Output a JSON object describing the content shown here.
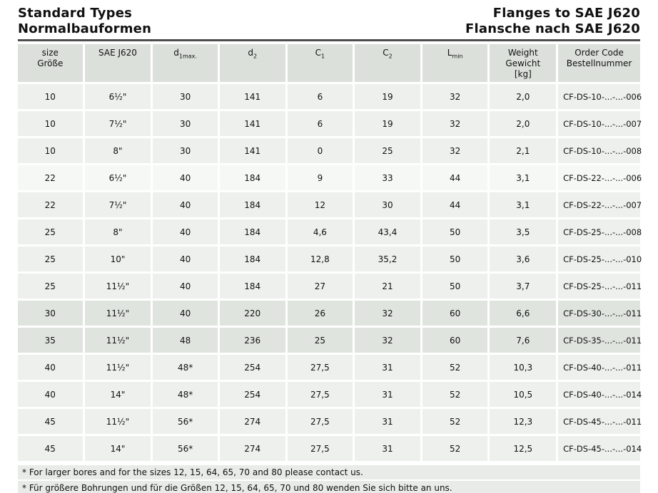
{
  "header": {
    "left": {
      "line1": "Standard Types",
      "line2": "Normalbauformen"
    },
    "right": {
      "line1": "Flanges to SAE J620",
      "line2": "Flansche nach SAE J620"
    }
  },
  "table": {
    "headers": {
      "size": {
        "l1": "size",
        "l2": "Größe"
      },
      "sae": "SAE J620",
      "d1": {
        "base": "d",
        "sub": "1max."
      },
      "d2": {
        "base": "d",
        "sub": "2"
      },
      "c1": {
        "base": "C",
        "sub": "1"
      },
      "c2": {
        "base": "C",
        "sub": "2"
      },
      "lmin": {
        "base": "L",
        "sub": "min"
      },
      "weight": {
        "l1": "Weight",
        "l2": "Gewicht",
        "l3": "[kg]"
      },
      "order": {
        "l1": "Order Code",
        "l2": "Bestellnummer"
      }
    },
    "rows": [
      {
        "size": "10",
        "sae": "6½\"",
        "d1": "30",
        "d2": "141",
        "c1": "6",
        "c2": "19",
        "lmin": "32",
        "weight": "2,0",
        "order": "CF-DS-10-...-...-006",
        "shade": "a"
      },
      {
        "size": "10",
        "sae": "7½\"",
        "d1": "30",
        "d2": "141",
        "c1": "6",
        "c2": "19",
        "lmin": "32",
        "weight": "2,0",
        "order": "CF-DS-10-...-...-007",
        "shade": "a"
      },
      {
        "size": "10",
        "sae": "8\"",
        "d1": "30",
        "d2": "141",
        "c1": "0",
        "c2": "25",
        "lmin": "32",
        "weight": "2,1",
        "order": "CF-DS-10-...-...-008",
        "shade": "a"
      },
      {
        "size": "22",
        "sae": "6½\"",
        "d1": "40",
        "d2": "184",
        "c1": "9",
        "c2": "33",
        "lmin": "44",
        "weight": "3,1",
        "order": "CF-DS-22-...-...-006",
        "shade": "c"
      },
      {
        "size": "22",
        "sae": "7½\"",
        "d1": "40",
        "d2": "184",
        "c1": "12",
        "c2": "30",
        "lmin": "44",
        "weight": "3,1",
        "order": "CF-DS-22-...-...-007",
        "shade": "a"
      },
      {
        "size": "25",
        "sae": "8\"",
        "d1": "40",
        "d2": "184",
        "c1": "4,6",
        "c2": "43,4",
        "lmin": "50",
        "weight": "3,5",
        "order": "CF-DS-25-...-...-008",
        "shade": "a"
      },
      {
        "size": "25",
        "sae": "10\"",
        "d1": "40",
        "d2": "184",
        "c1": "12,8",
        "c2": "35,2",
        "lmin": "50",
        "weight": "3,6",
        "order": "CF-DS-25-...-...-010",
        "shade": "a"
      },
      {
        "size": "25",
        "sae": "11½\"",
        "d1": "40",
        "d2": "184",
        "c1": "27",
        "c2": "21",
        "lmin": "50",
        "weight": "3,7",
        "order": "CF-DS-25-...-...-011",
        "shade": "a"
      },
      {
        "size": "30",
        "sae": "11½\"",
        "d1": "40",
        "d2": "220",
        "c1": "26",
        "c2": "32",
        "lmin": "60",
        "weight": "6,6",
        "order": "CF-DS-30-...-...-011",
        "shade": "b"
      },
      {
        "size": "35",
        "sae": "11½\"",
        "d1": "48",
        "d2": "236",
        "c1": "25",
        "c2": "32",
        "lmin": "60",
        "weight": "7,6",
        "order": "CF-DS-35-...-...-011",
        "shade": "b"
      },
      {
        "size": "40",
        "sae": "11½\"",
        "d1": "48*",
        "d2": "254",
        "c1": "27,5",
        "c2": "31",
        "lmin": "52",
        "weight": "10,3",
        "order": "CF-DS-40-...-...-011",
        "shade": "a"
      },
      {
        "size": "40",
        "sae": "14\"",
        "d1": "48*",
        "d2": "254",
        "c1": "27,5",
        "c2": "31",
        "lmin": "52",
        "weight": "10,5",
        "order": "CF-DS-40-...-...-014",
        "shade": "a"
      },
      {
        "size": "45",
        "sae": "11½\"",
        "d1": "56*",
        "d2": "274",
        "c1": "27,5",
        "c2": "31",
        "lmin": "52",
        "weight": "12,3",
        "order": "CF-DS-45-...-...-011",
        "shade": "a"
      },
      {
        "size": "45",
        "sae": "14\"",
        "d1": "56*",
        "d2": "274",
        "c1": "27,5",
        "c2": "31",
        "lmin": "52",
        "weight": "12,5",
        "order": "CF-DS-45-...-...-014",
        "shade": "a"
      }
    ]
  },
  "footnotes": [
    "* For larger bores and for the sizes 12, 15, 64, 65, 70 and 80 please contact us.",
    "* Für größere Bohrungen und für die Größen 12, 15, 64, 65, 70 und 80 wenden Sie sich bitte an uns."
  ]
}
